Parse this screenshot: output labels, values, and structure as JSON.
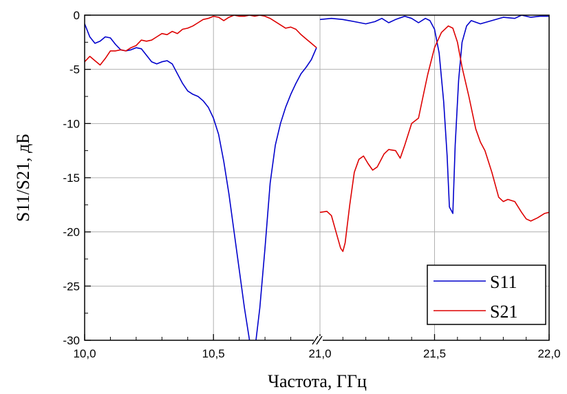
{
  "chart_data": {
    "type": "line",
    "xlabel": "Частота, ГГц",
    "ylabel": "S11/S21, дБ",
    "ylim": [
      -30,
      0
    ],
    "yticks": [
      "0",
      "-5",
      "-10",
      "-15",
      "-20",
      "-25",
      "-30"
    ],
    "ytick_values": [
      0,
      -5,
      -10,
      -15,
      -20,
      -25,
      -30
    ],
    "xticks": [
      "10,0",
      "10,5",
      "21,0",
      "21,5",
      "22,0"
    ],
    "x_axis_break": "between 10,9 and 21,0",
    "panels": [
      {
        "xlim": [
          10.0,
          10.9
        ],
        "xtick_values": [
          10.0,
          10.5
        ]
      },
      {
        "xlim": [
          21.0,
          22.0
        ],
        "xtick_values": [
          21.0,
          21.5,
          22.0
        ]
      }
    ],
    "grid": true,
    "legend_position": "bottom-right",
    "series": [
      {
        "name": "S11",
        "color": "#0000cc",
        "segments": [
          [
            [
              10.0,
              -0.8
            ],
            [
              10.02,
              -2.0
            ],
            [
              10.04,
              -2.6
            ],
            [
              10.06,
              -2.4
            ],
            [
              10.08,
              -2.0
            ],
            [
              10.1,
              -2.1
            ],
            [
              10.12,
              -2.7
            ],
            [
              10.14,
              -3.2
            ],
            [
              10.16,
              -3.3
            ],
            [
              10.18,
              -3.2
            ],
            [
              10.2,
              -3.0
            ],
            [
              10.22,
              -3.1
            ],
            [
              10.24,
              -3.7
            ],
            [
              10.26,
              -4.3
            ],
            [
              10.28,
              -4.5
            ],
            [
              10.3,
              -4.3
            ],
            [
              10.32,
              -4.2
            ],
            [
              10.34,
              -4.5
            ],
            [
              10.36,
              -5.4
            ],
            [
              10.38,
              -6.3
            ],
            [
              10.4,
              -7.0
            ],
            [
              10.42,
              -7.3
            ],
            [
              10.44,
              -7.5
            ],
            [
              10.46,
              -7.9
            ],
            [
              10.48,
              -8.5
            ],
            [
              10.5,
              -9.5
            ],
            [
              10.52,
              -11.0
            ],
            [
              10.54,
              -13.5
            ],
            [
              10.56,
              -16.5
            ],
            [
              10.58,
              -20.0
            ],
            [
              10.6,
              -23.5
            ],
            [
              10.62,
              -27.0
            ],
            [
              10.64,
              -30.0
            ]
          ],
          [
            [
              10.665,
              -30.0
            ],
            [
              10.68,
              -27.0
            ],
            [
              10.7,
              -21.5
            ],
            [
              10.72,
              -15.5
            ],
            [
              10.74,
              -12.0
            ],
            [
              10.76,
              -10.0
            ],
            [
              10.78,
              -8.5
            ],
            [
              10.8,
              -7.3
            ],
            [
              10.82,
              -6.3
            ],
            [
              10.84,
              -5.4
            ],
            [
              10.86,
              -4.8
            ],
            [
              10.88,
              -4.1
            ],
            [
              10.9,
              -3.0
            ]
          ],
          [
            [
              21.0,
              -0.4
            ],
            [
              21.05,
              -0.3
            ],
            [
              21.1,
              -0.4
            ],
            [
              21.15,
              -0.6
            ],
            [
              21.2,
              -0.8
            ],
            [
              21.24,
              -0.6
            ],
            [
              21.27,
              -0.3
            ],
            [
              21.3,
              -0.7
            ],
            [
              21.33,
              -0.4
            ],
            [
              21.37,
              -0.1
            ],
            [
              21.4,
              -0.3
            ],
            [
              21.43,
              -0.7
            ],
            [
              21.46,
              -0.3
            ],
            [
              21.48,
              -0.5
            ],
            [
              21.5,
              -1.3
            ],
            [
              21.52,
              -3.5
            ],
            [
              21.54,
              -8.0
            ],
            [
              21.555,
              -13.0
            ],
            [
              21.565,
              -17.7
            ],
            [
              21.58,
              -18.3
            ],
            [
              21.59,
              -12.0
            ],
            [
              21.605,
              -6.0
            ],
            [
              21.62,
              -2.5
            ],
            [
              21.64,
              -1.0
            ],
            [
              21.66,
              -0.5
            ],
            [
              21.7,
              -0.8
            ],
            [
              21.75,
              -0.5
            ],
            [
              21.8,
              -0.2
            ],
            [
              21.85,
              -0.3
            ],
            [
              21.88,
              0.0
            ],
            [
              21.92,
              -0.2
            ],
            [
              21.96,
              -0.1
            ],
            [
              22.0,
              -0.1
            ]
          ]
        ]
      },
      {
        "name": "S21",
        "color": "#dd0000",
        "segments": [
          [
            [
              10.0,
              -4.3
            ],
            [
              10.02,
              -3.8
            ],
            [
              10.04,
              -4.2
            ],
            [
              10.06,
              -4.6
            ],
            [
              10.08,
              -4.0
            ],
            [
              10.1,
              -3.3
            ],
            [
              10.12,
              -3.3
            ],
            [
              10.14,
              -3.2
            ],
            [
              10.16,
              -3.3
            ],
            [
              10.18,
              -3.0
            ],
            [
              10.2,
              -2.8
            ],
            [
              10.22,
              -2.3
            ],
            [
              10.24,
              -2.4
            ],
            [
              10.26,
              -2.3
            ],
            [
              10.28,
              -2.0
            ],
            [
              10.3,
              -1.7
            ],
            [
              10.32,
              -1.8
            ],
            [
              10.34,
              -1.5
            ],
            [
              10.36,
              -1.7
            ],
            [
              10.38,
              -1.3
            ],
            [
              10.4,
              -1.2
            ],
            [
              10.42,
              -1.0
            ],
            [
              10.44,
              -0.7
            ],
            [
              10.46,
              -0.4
            ],
            [
              10.48,
              -0.3
            ],
            [
              10.5,
              -0.1
            ],
            [
              10.52,
              -0.2
            ],
            [
              10.54,
              -0.5
            ],
            [
              10.56,
              -0.2
            ],
            [
              10.58,
              0.0
            ],
            [
              10.6,
              -0.1
            ],
            [
              10.62,
              -0.1
            ],
            [
              10.64,
              0.0
            ],
            [
              10.66,
              -0.1
            ],
            [
              10.68,
              0.0
            ],
            [
              10.7,
              -0.1
            ],
            [
              10.72,
              -0.3
            ],
            [
              10.74,
              -0.6
            ],
            [
              10.76,
              -0.9
            ],
            [
              10.78,
              -1.2
            ],
            [
              10.8,
              -1.1
            ],
            [
              10.82,
              -1.3
            ],
            [
              10.84,
              -1.8
            ],
            [
              10.86,
              -2.2
            ],
            [
              10.88,
              -2.6
            ],
            [
              10.9,
              -3.0
            ]
          ],
          [
            [
              21.0,
              -18.2
            ],
            [
              21.03,
              -18.1
            ],
            [
              21.05,
              -18.5
            ],
            [
              21.07,
              -20.0
            ],
            [
              21.09,
              -21.5
            ],
            [
              21.1,
              -21.8
            ],
            [
              21.11,
              -21.0
            ],
            [
              21.13,
              -17.5
            ],
            [
              21.15,
              -14.5
            ],
            [
              21.17,
              -13.3
            ],
            [
              21.19,
              -13.0
            ],
            [
              21.21,
              -13.7
            ],
            [
              21.23,
              -14.3
            ],
            [
              21.25,
              -14.0
            ],
            [
              21.28,
              -12.8
            ],
            [
              21.3,
              -12.4
            ],
            [
              21.33,
              -12.5
            ],
            [
              21.35,
              -13.2
            ],
            [
              21.37,
              -12.0
            ],
            [
              21.4,
              -10.0
            ],
            [
              21.43,
              -9.5
            ],
            [
              21.45,
              -7.5
            ],
            [
              21.47,
              -5.5
            ],
            [
              21.5,
              -3.0
            ],
            [
              21.53,
              -1.6
            ],
            [
              21.56,
              -1.0
            ],
            [
              21.58,
              -1.2
            ],
            [
              21.6,
              -2.5
            ],
            [
              21.62,
              -4.8
            ],
            [
              21.65,
              -7.5
            ],
            [
              21.68,
              -10.5
            ],
            [
              21.7,
              -11.7
            ],
            [
              21.72,
              -12.5
            ],
            [
              21.75,
              -14.5
            ],
            [
              21.78,
              -16.8
            ],
            [
              21.8,
              -17.2
            ],
            [
              21.82,
              -17.0
            ],
            [
              21.85,
              -17.2
            ],
            [
              21.88,
              -18.2
            ],
            [
              21.9,
              -18.8
            ],
            [
              21.92,
              -19.0
            ],
            [
              21.95,
              -18.7
            ],
            [
              21.98,
              -18.3
            ],
            [
              22.0,
              -18.2
            ]
          ]
        ]
      }
    ]
  }
}
